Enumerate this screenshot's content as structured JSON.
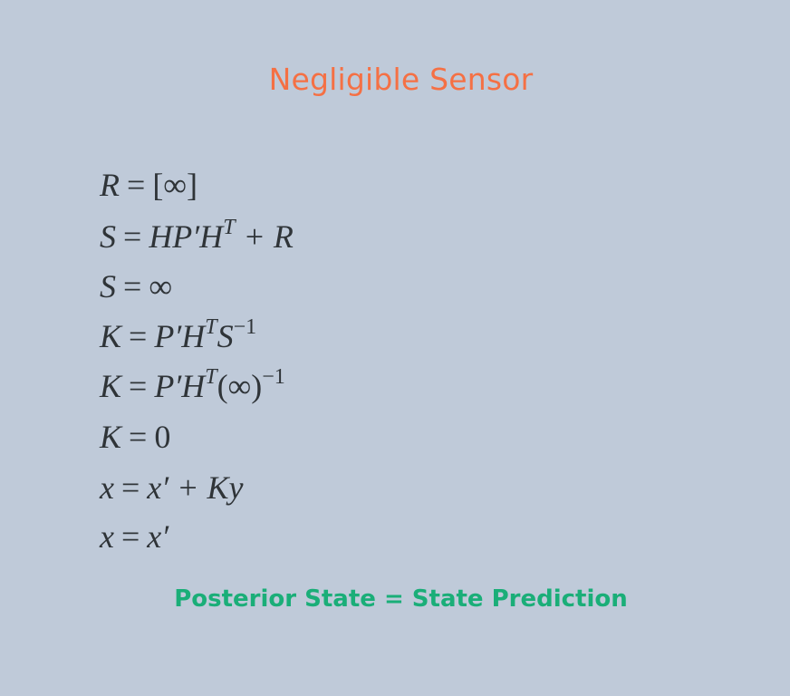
{
  "slide": {
    "title": "Negligible Sensor",
    "conclusion": "Posterior State = State Prediction"
  },
  "equations": [
    {
      "lhs": "R",
      "op": "=",
      "rhs": "[∞]"
    },
    {
      "lhs": "S",
      "op": "=",
      "rhs": "HP′H",
      "sup": "T",
      "rhs_tail": " + R"
    },
    {
      "lhs": "S",
      "op": "=",
      "rhs": "∞"
    },
    {
      "lhs": "K",
      "op": "=",
      "rhs": "P′H",
      "sup": "T",
      "rhs_tail": "S",
      "sup2": "−1"
    },
    {
      "lhs": "K",
      "op": "=",
      "rhs": "P′H",
      "sup": "T",
      "rhs_tail": "(∞)",
      "sup2": "−1"
    },
    {
      "lhs": "K",
      "op": "=",
      "rhs": "0"
    },
    {
      "lhs": "x",
      "op": "=",
      "rhs": "x′ + Ky"
    },
    {
      "lhs": "x",
      "op": "=",
      "rhs": "x′"
    }
  ],
  "colors": {
    "background": "#bfcad9",
    "title": "#f57044",
    "conclusion": "#1aae78",
    "equation_text": "#2f3438"
  }
}
